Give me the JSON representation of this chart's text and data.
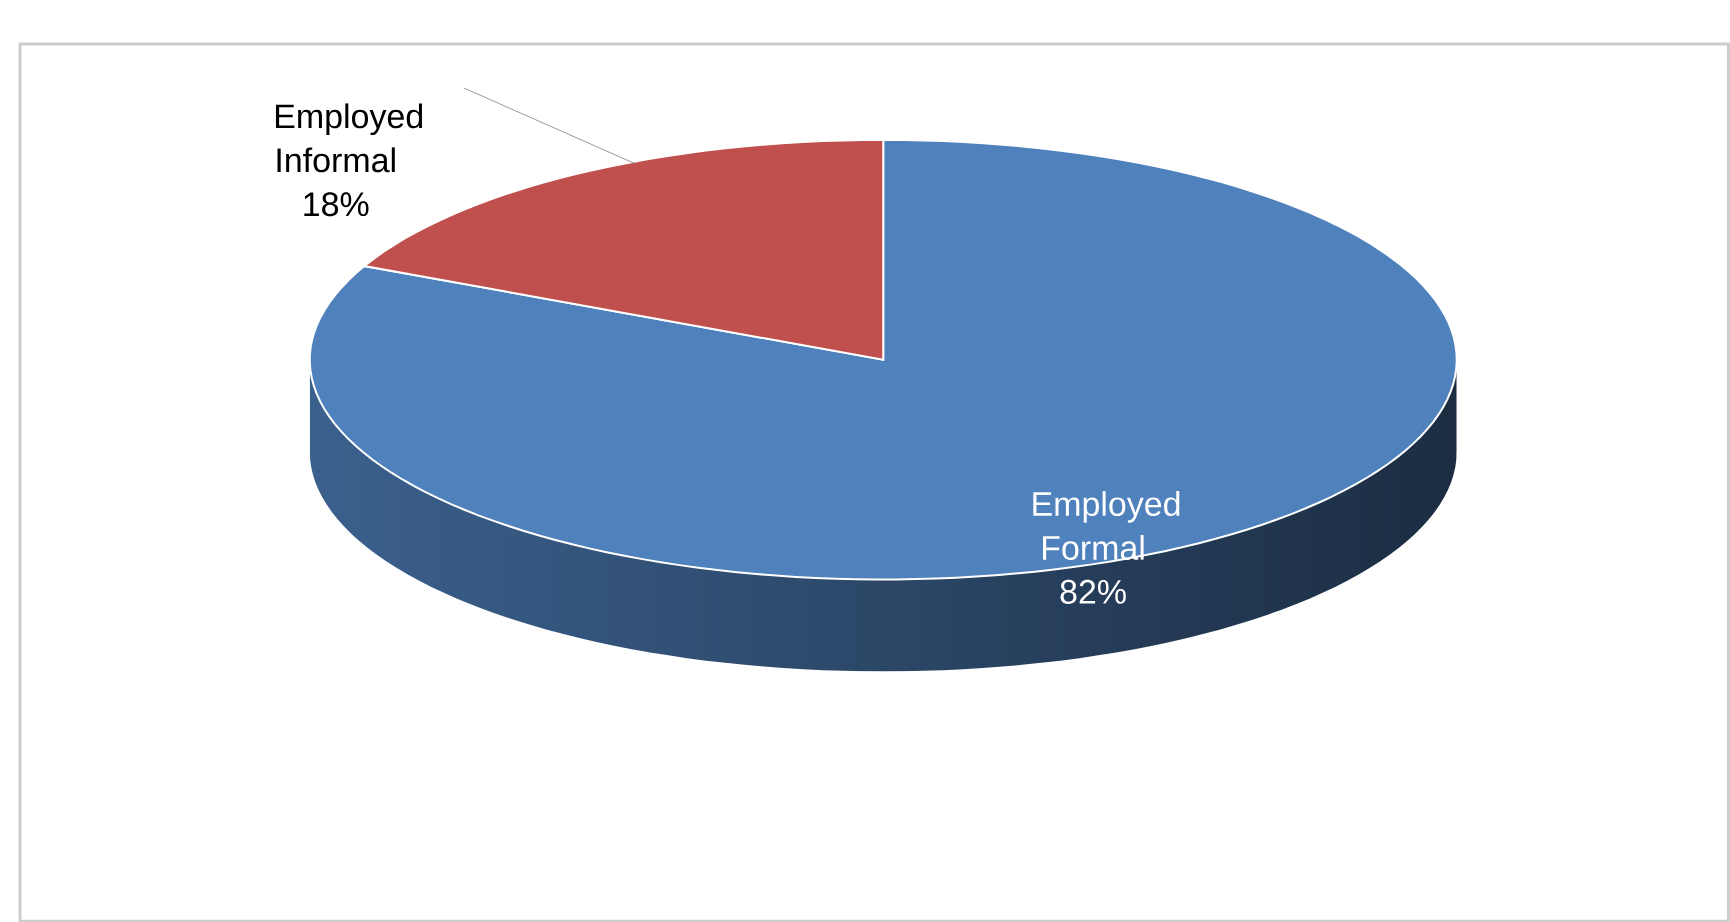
{
  "chart_data": {
    "type": "pie",
    "categories": [
      "Employed Formal",
      "Employed Informal"
    ],
    "values": [
      82,
      18
    ],
    "value_labels": [
      "82%",
      "18%"
    ],
    "colors": [
      "#4f81bd",
      "#c0504d"
    ]
  }
}
